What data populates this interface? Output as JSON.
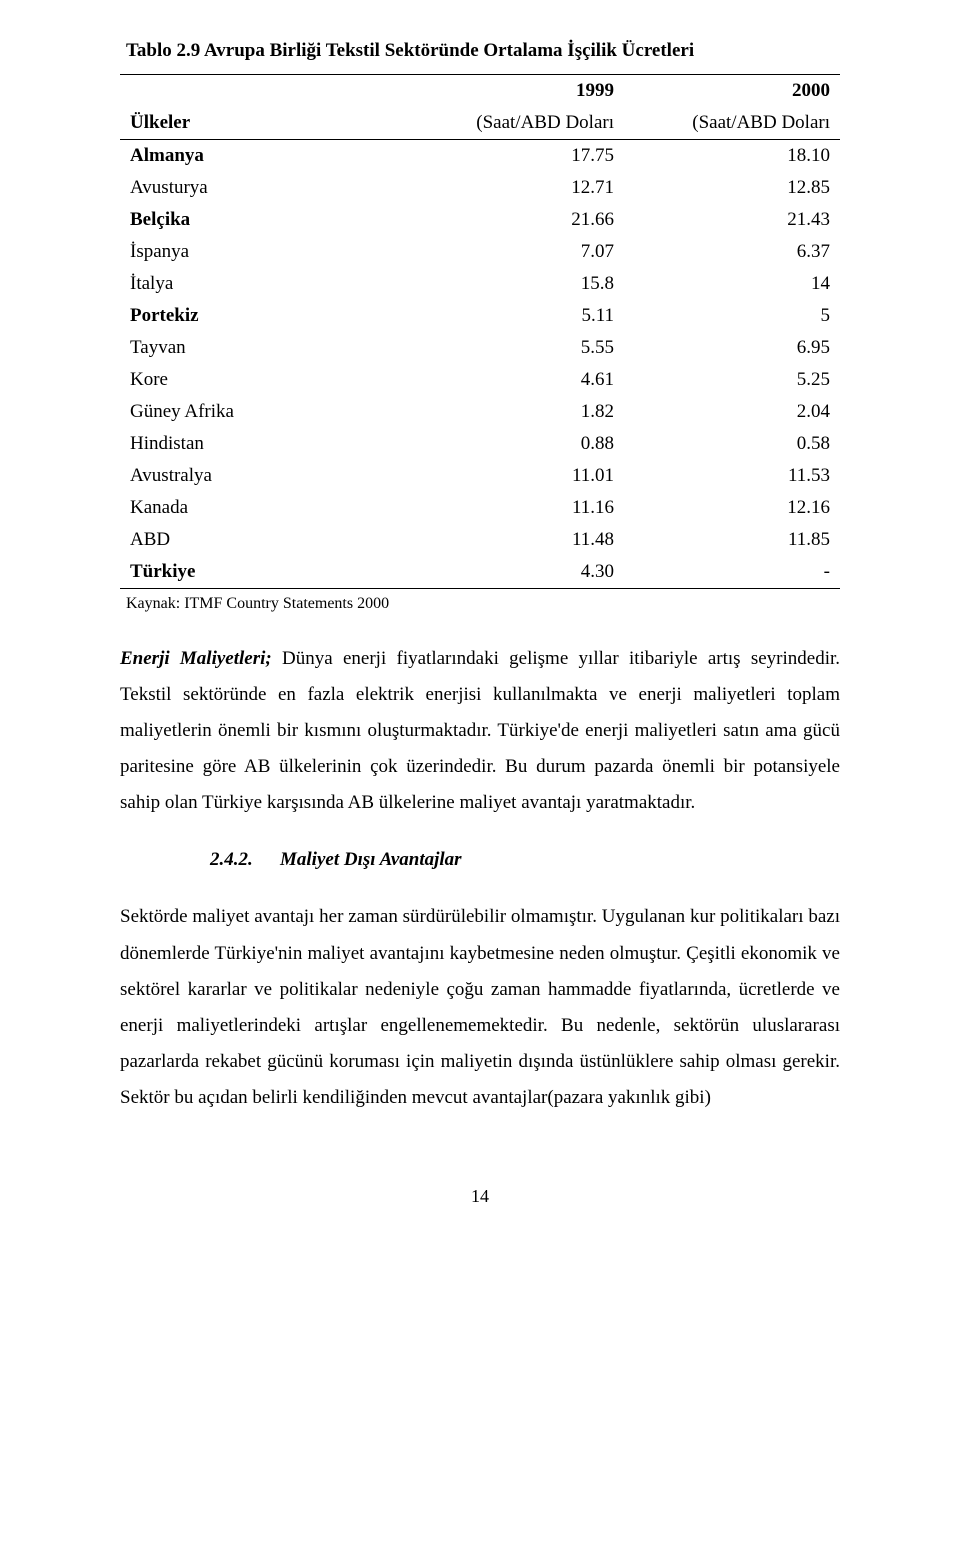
{
  "table": {
    "title": "Tablo 2.9 Avrupa Birliği Tekstil Sektöründe Ortalama İşçilik  Ücretleri",
    "header": {
      "country": "Ülkeler",
      "year1": "1999",
      "year2": "2000",
      "unit1": "(Saat/ABD Doları",
      "unit2": "(Saat/ABD Doları"
    },
    "rows": [
      {
        "country": "Almanya",
        "bold": true,
        "v1": "17.75",
        "v2": "18.10"
      },
      {
        "country": "Avusturya",
        "bold": false,
        "v1": "12.71",
        "v2": "12.85"
      },
      {
        "country": "Belçika",
        "bold": true,
        "v1": "21.66",
        "v2": "21.43"
      },
      {
        "country": "İspanya",
        "bold": false,
        "v1": "7.07",
        "v2": "6.37"
      },
      {
        "country": "İtalya",
        "bold": false,
        "v1": "15.8",
        "v2": "14"
      },
      {
        "country": "Portekiz",
        "bold": true,
        "v1": "5.11",
        "v2": "5"
      },
      {
        "country": "Tayvan",
        "bold": false,
        "v1": "5.55",
        "v2": "6.95"
      },
      {
        "country": "Kore",
        "bold": false,
        "v1": "4.61",
        "v2": "5.25"
      },
      {
        "country": "Güney Afrika",
        "bold": false,
        "v1": "1.82",
        "v2": "2.04"
      },
      {
        "country": "Hindistan",
        "bold": false,
        "v1": "0.88",
        "v2": "0.58"
      },
      {
        "country": "Avustralya",
        "bold": false,
        "v1": "11.01",
        "v2": "11.53"
      },
      {
        "country": "Kanada",
        "bold": false,
        "v1": "11.16",
        "v2": "12.16"
      },
      {
        "country": "ABD",
        "bold": false,
        "v1": "11.48",
        "v2": "11.85"
      },
      {
        "country": "Türkiye",
        "bold": true,
        "v1": "4.30",
        "v2": "-"
      }
    ],
    "source": "Kaynak: ITMF Country Statements 2000"
  },
  "para1_lead": "Enerji Maliyetleri;",
  "para1_rest": " Dünya enerji fiyatlarındaki gelişme yıllar itibariyle artış seyrindedir. Tekstil sektöründe en fazla elektrik enerjisi kullanılmakta ve enerji maliyetleri toplam maliyetlerin önemli bir kısmını oluşturmaktadır. Türkiye'de enerji maliyetleri satın ama gücü paritesine göre  AB ülkelerinin çok üzerindedir. Bu durum pazarda önemli bir potansiyele sahip olan Türkiye karşısında AB ülkelerine maliyet avantajı yaratmaktadır.",
  "section": {
    "num": "2.4.2.",
    "title": "Maliyet  Dışı Avantajlar"
  },
  "para2": "Sektörde maliyet avantajı her zaman sürdürülebilir olmamıştır. Uygulanan kur politikaları bazı dönemlerde Türkiye'nin maliyet avantajını kaybetmesine neden olmuştur. Çeşitli ekonomik ve sektörel kararlar ve politikalar nedeniyle çoğu zaman hammadde fiyatlarında, ücretlerde ve enerji maliyetlerindeki  artışlar engellenememektedir. Bu nedenle, sektörün uluslararası pazarlarda rekabet gücünü koruması için maliyetin dışında üstünlüklere sahip olması gerekir. Sektör bu açıdan belirli kendiliğinden mevcut avantajlar(pazara yakınlık gibi)",
  "page_number": "14"
}
